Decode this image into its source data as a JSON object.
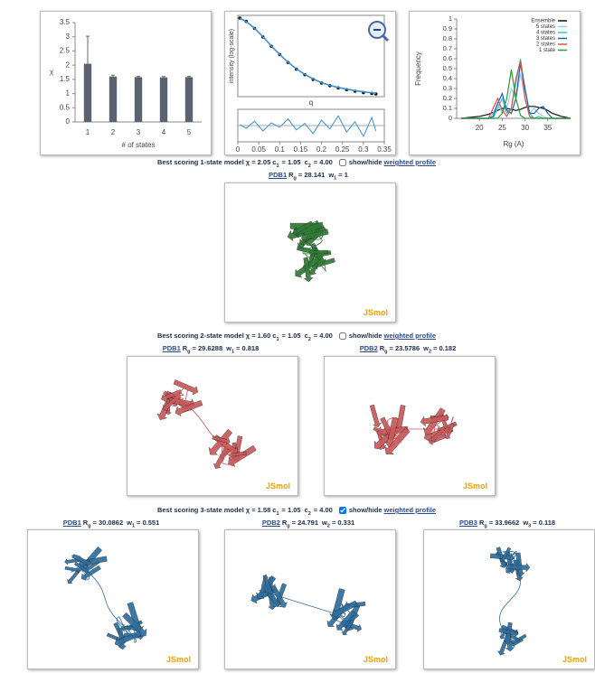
{
  "chart_data": [
    {
      "type": "bar",
      "x_label": "# of states",
      "y_label": "χ",
      "color": "#5a6270",
      "categories": [
        "1",
        "2",
        "3",
        "4",
        "5"
      ],
      "values": [
        2.05,
        1.6,
        1.58,
        1.57,
        1.58
      ],
      "errors": [
        0.97,
        0.05,
        0.03,
        0.03,
        0.03
      ],
      "ylim": [
        0,
        3.5
      ],
      "yticks": [
        0,
        0.5,
        1,
        1.5,
        2,
        2.5,
        3,
        3.5
      ]
    },
    {
      "type": "profile",
      "x_label": "q",
      "y_label": "intensity (log-scale)",
      "log_y": true,
      "x": [
        0.005,
        0.02,
        0.04,
        0.06,
        0.08,
        0.1,
        0.12,
        0.14,
        0.16,
        0.18,
        0.2,
        0.22,
        0.24,
        0.26,
        0.28,
        0.3,
        0.32,
        0.33
      ],
      "series": [
        {
          "color": "#111111",
          "values": [
            100,
            80,
            50,
            28,
            15,
            8.5,
            5,
            3.2,
            2.2,
            1.6,
            1.25,
            1.05,
            0.9,
            0.8,
            0.72,
            0.66,
            0.62,
            0.6
          ]
        },
        {
          "color": "#3b8fd0",
          "values": [
            100,
            79,
            50,
            28.5,
            15.2,
            8.6,
            5.1,
            3.25,
            2.25,
            1.65,
            1.28,
            1.07,
            0.93,
            0.83,
            0.75,
            0.69,
            0.65,
            0.63
          ]
        }
      ],
      "residuals": {
        "color": "#3b8fd0",
        "values": [
          0.2,
          -0.5,
          0.8,
          -1,
          0.5,
          -0.3,
          1.2,
          -0.8,
          0.4,
          -1.5,
          1,
          -0.6,
          1.8,
          -1.2,
          0.7,
          -2,
          1.5,
          -1
        ],
        "ylim": [
          -3,
          3
        ]
      },
      "xlim": [
        0,
        0.35
      ],
      "ylim": [
        0.5,
        120
      ],
      "xticks": [
        0,
        0.05,
        0.1,
        0.15,
        0.2,
        0.25,
        0.3,
        0.35
      ]
    },
    {
      "type": "line",
      "x_label": "Rg (A)",
      "y_label": "Frequency",
      "legend": "upper right",
      "x": [
        16,
        18,
        20,
        22,
        23,
        24,
        25,
        26,
        27,
        28,
        29,
        30,
        31,
        32,
        33,
        34,
        35,
        36,
        38,
        40
      ],
      "series": [
        {
          "name": "Ensemble",
          "color": "#111111",
          "values": [
            0,
            0.01,
            0.02,
            0.04,
            0.06,
            0.08,
            0.1,
            0.1,
            0.09,
            0.08,
            0.09,
            0.11,
            0.12,
            0.12,
            0.11,
            0.1,
            0.08,
            0.05,
            0.02,
            0
          ]
        },
        {
          "name": "5 states",
          "color": "#99ccee",
          "values": [
            0,
            0,
            0,
            0,
            0.05,
            0.15,
            0.05,
            0.1,
            0.3,
            0.2,
            0.45,
            0.2,
            0.05,
            0.1,
            0.05,
            0.02,
            0,
            0,
            0,
            0
          ]
        },
        {
          "name": "4 states",
          "color": "#33cccc",
          "values": [
            0,
            0,
            0,
            0,
            0,
            0.1,
            0.2,
            0.05,
            0.1,
            0.35,
            0.6,
            0.3,
            0.05,
            0,
            0.02,
            0,
            0,
            0,
            0,
            0
          ]
        },
        {
          "name": "3 states",
          "color": "#1f5fb0",
          "values": [
            0,
            0,
            0,
            0,
            0.02,
            0.15,
            0.25,
            0.08,
            0.05,
            0.2,
            0.55,
            0.3,
            0.05,
            0.05,
            0.1,
            0.12,
            0.05,
            0,
            0,
            0
          ]
        },
        {
          "name": "2 states",
          "color": "#e05040",
          "values": [
            0,
            0,
            0,
            0,
            0.1,
            0.2,
            0.08,
            0.02,
            0.1,
            0.4,
            0.58,
            0.2,
            0.02,
            0,
            0,
            0,
            0,
            0,
            0,
            0
          ]
        },
        {
          "name": "1 state",
          "color": "#2a9a3a",
          "values": [
            0,
            0,
            0,
            0,
            0,
            0,
            0.05,
            0.2,
            0.49,
            0.2,
            0.03,
            0,
            0,
            0,
            0,
            0,
            0,
            0,
            0,
            0
          ]
        }
      ],
      "xlim": [
        15,
        40
      ],
      "xticks": [
        20,
        25,
        30,
        35
      ],
      "ylim": [
        0,
        1
      ],
      "yticks": [
        0,
        0.1,
        0.2,
        0.3,
        0.4,
        0.5,
        0.6,
        0.7,
        0.8,
        0.9,
        1
      ]
    }
  ],
  "models": [
    {
      "heading": "Best scoring 1-state model",
      "stats": [
        {
          "text": "χ = 2.05"
        },
        {
          "text": "c",
          "sub": "1",
          "after": "= 1.05"
        },
        {
          "text": "c",
          "sub": "2",
          "after": "= 4.00"
        }
      ],
      "checked": false,
      "toggle_text": "show/hide",
      "link_text": "weighted profile",
      "color": "#2f7a35",
      "structures": [
        {
          "link": "PDB1",
          "parts": [
            {
              "text": "R",
              "sub": "g",
              "after": "= 28.141"
            },
            {
              "text": "w",
              "sub": "1",
              "after": "= 1"
            }
          ],
          "viewer": "JSmol"
        }
      ]
    },
    {
      "heading": "Best scoring 2-state model",
      "stats": [
        {
          "text": "χ = 1.60"
        },
        {
          "text": "c",
          "sub": "1",
          "after": "= 1.05"
        },
        {
          "text": "c",
          "sub": "2",
          "after": "= 4.00"
        }
      ],
      "checked": false,
      "toggle_text": "show/hide",
      "link_text": "weighted profile",
      "color": "#c9585a",
      "structures": [
        {
          "link": "PDB1",
          "parts": [
            {
              "text": "R",
              "sub": "g",
              "after": "= 29.6288"
            },
            {
              "text": "w",
              "sub": "1",
              "after": "= 0.818"
            }
          ],
          "viewer": "JSmol"
        },
        {
          "link": "PDB2",
          "parts": [
            {
              "text": "R",
              "sub": "g",
              "after": "= 23.5786"
            },
            {
              "text": "w",
              "sub": "2",
              "after": "= 0.182"
            }
          ],
          "viewer": "JSmol"
        }
      ]
    },
    {
      "heading": "Best scoring 3-state model",
      "stats": [
        {
          "text": "χ = 1.58"
        },
        {
          "text": "c",
          "sub": "1",
          "after": "= 1.05"
        },
        {
          "text": "c",
          "sub": "2",
          "after": "= 4.00"
        }
      ],
      "checked": true,
      "toggle_text": "show/hide",
      "link_text": "weighted profile",
      "color": "#2e6e9e",
      "structures": [
        {
          "link": "PDB1",
          "parts": [
            {
              "text": "R",
              "sub": "g",
              "after": "= 30.0862"
            },
            {
              "text": "w",
              "sub": "1",
              "after": "= 0.551"
            }
          ],
          "viewer": "JSmol"
        },
        {
          "link": "PDB2",
          "parts": [
            {
              "text": "R",
              "sub": "g",
              "after": "= 24.791"
            },
            {
              "text": "w",
              "sub": "2",
              "after": "= 0.331"
            }
          ],
          "viewer": "JSmol"
        },
        {
          "link": "PDB3",
          "parts": [
            {
              "text": "R",
              "sub": "g",
              "after": "= 33.9662"
            },
            {
              "text": "w",
              "sub": "3",
              "after": "= 0.118"
            }
          ],
          "viewer": "JSmol"
        }
      ]
    }
  ]
}
